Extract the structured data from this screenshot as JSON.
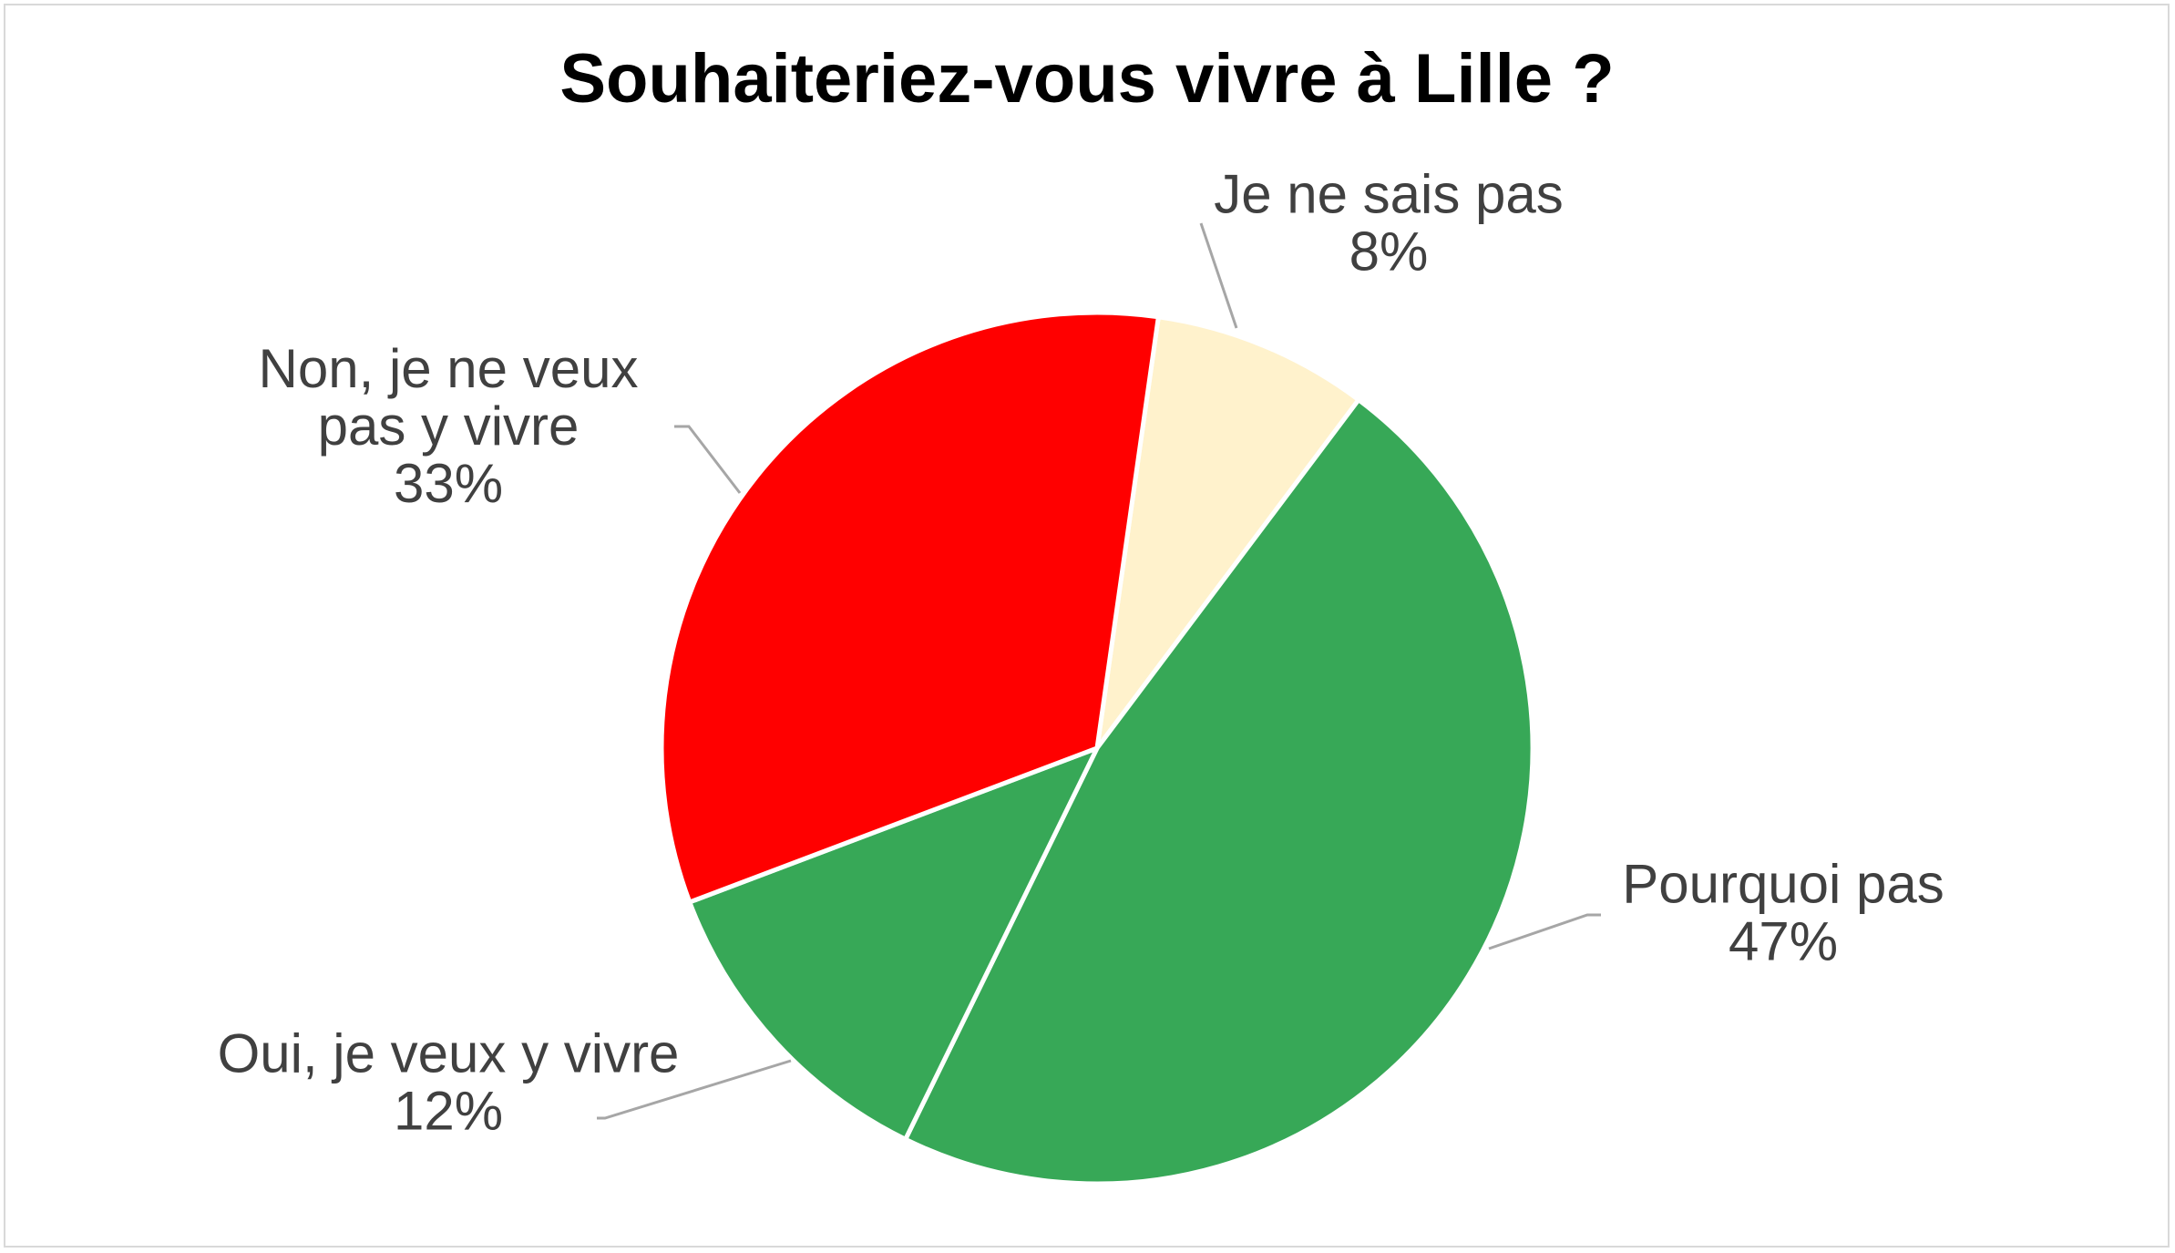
{
  "chart_data": {
    "type": "pie",
    "title": "Souhaiteriez-vous vivre à Lille ?",
    "start_angle_deg": 8.1,
    "direction": "clockwise",
    "slices": [
      {
        "label_lines": [
          "Je ne sais pas"
        ],
        "percent_text": "8%",
        "value": 8,
        "color": "#FFF2CC"
      },
      {
        "label_lines": [
          "Pourquoi pas"
        ],
        "percent_text": "47%",
        "value": 47,
        "color": "#37A857"
      },
      {
        "label_lines": [
          "Oui, je veux y vivre"
        ],
        "percent_text": "12%",
        "value": 12,
        "color": "#37A857"
      },
      {
        "label_lines": [
          "Non, je ne veux",
          "pas y vivre"
        ],
        "percent_text": "33%",
        "value": 33,
        "color": "#FF0000"
      }
    ],
    "slice_border_color": "#FFFFFF",
    "label_color": "#404040",
    "leader_line_color": "#A6A6A6",
    "legend": "none"
  }
}
